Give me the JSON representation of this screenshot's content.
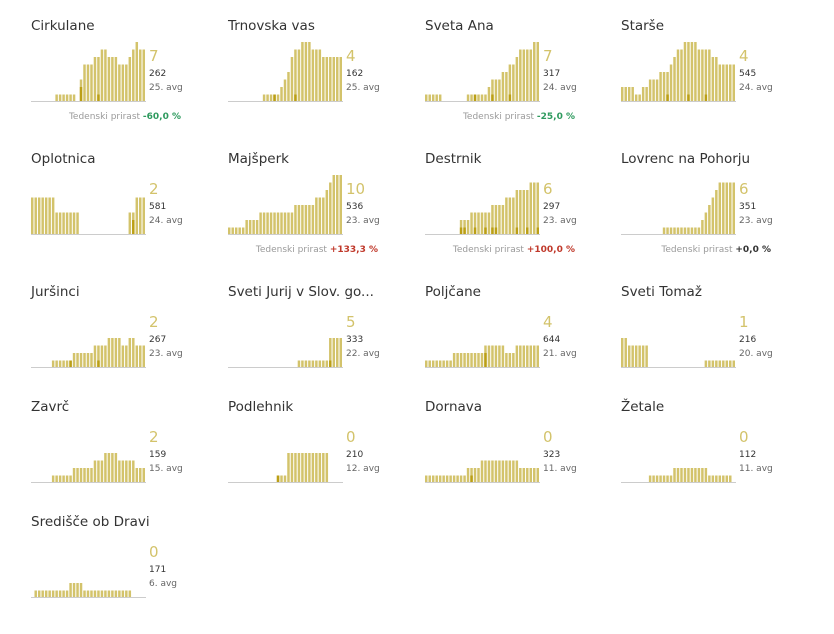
{
  "colors": {
    "bar_light": "#d3c36b",
    "bar_dark": "#bb9f16",
    "axis": "#cccccc"
  },
  "trend_label": "Tedenski prirast",
  "chart_data": [
    {
      "type": "bar",
      "title": "Cirkulane",
      "latest": "7",
      "total": "262",
      "avg": "25. avg",
      "trend": "-60,0 %",
      "trend_kind": "neg",
      "series": [
        {
          "name": "",
          "values": [
            0,
            0,
            0,
            0,
            0,
            0,
            0,
            1,
            1,
            1,
            1,
            1,
            1,
            0,
            3,
            5,
            5,
            5,
            6,
            6,
            7,
            7,
            6,
            6,
            6,
            5,
            5,
            5,
            6,
            7,
            8,
            7,
            7
          ]
        }
      ],
      "highlight": [
        0,
        0,
        0,
        0,
        0,
        0,
        0,
        0,
        0,
        0,
        0,
        0,
        0,
        0,
        2,
        0,
        0,
        0,
        0,
        1,
        0,
        0,
        0,
        0,
        0,
        0,
        0,
        0,
        0,
        0,
        0,
        0,
        0
      ]
    },
    {
      "type": "bar",
      "title": "Trnovska vas",
      "latest": "4",
      "total": "162",
      "avg": "25. avg",
      "trend": "",
      "trend_kind": "",
      "series": [
        {
          "name": "",
          "values": [
            0,
            0,
            0,
            0,
            0,
            0,
            0,
            0,
            0,
            0,
            1,
            1,
            1,
            1,
            1,
            2,
            3,
            4,
            6,
            7,
            7,
            8,
            8,
            8,
            7,
            7,
            7,
            6,
            6,
            6,
            6,
            6,
            6
          ]
        }
      ],
      "highlight": [
        0,
        0,
        0,
        0,
        0,
        0,
        0,
        0,
        0,
        0,
        0,
        0,
        0,
        1,
        0,
        0,
        0,
        0,
        0,
        1,
        0,
        0,
        0,
        0,
        0,
        0,
        0,
        0,
        0,
        0,
        0,
        0,
        0
      ]
    },
    {
      "type": "bar",
      "title": "Sveta Ana",
      "latest": "7",
      "total": "317",
      "avg": "24. avg",
      "trend": "-25,0 %",
      "trend_kind": "neg",
      "series": [
        {
          "name": "",
          "values": [
            1,
            1,
            1,
            1,
            1,
            0,
            0,
            0,
            0,
            0,
            0,
            0,
            1,
            1,
            1,
            1,
            1,
            1,
            2,
            3,
            3,
            3,
            4,
            4,
            5,
            5,
            6,
            7,
            7,
            7,
            7,
            8,
            8
          ]
        }
      ],
      "highlight": [
        0,
        0,
        0,
        0,
        0,
        0,
        0,
        0,
        0,
        0,
        0,
        0,
        0,
        0,
        1,
        0,
        0,
        0,
        0,
        1,
        0,
        0,
        0,
        0,
        1,
        0,
        0,
        0,
        0,
        0,
        0,
        0,
        0
      ]
    },
    {
      "type": "bar",
      "title": "Starše",
      "latest": "4",
      "total": "545",
      "avg": "24. avg",
      "trend": "",
      "trend_kind": "",
      "series": [
        {
          "name": "",
          "values": [
            2,
            2,
            2,
            2,
            1,
            1,
            2,
            2,
            3,
            3,
            3,
            4,
            4,
            4,
            5,
            6,
            7,
            7,
            8,
            8,
            8,
            8,
            7,
            7,
            7,
            7,
            6,
            6,
            5,
            5,
            5,
            5,
            5
          ]
        }
      ],
      "highlight": [
        0,
        0,
        0,
        0,
        0,
        0,
        0,
        0,
        0,
        0,
        0,
        0,
        0,
        1,
        0,
        0,
        0,
        0,
        0,
        1,
        0,
        0,
        0,
        0,
        1,
        0,
        0,
        0,
        0,
        0,
        0,
        0,
        0
      ]
    },
    {
      "type": "bar",
      "title": "Oplotnica",
      "latest": "2",
      "total": "581",
      "avg": "24. avg",
      "trend": "",
      "trend_kind": "",
      "series": [
        {
          "name": "",
          "values": [
            5,
            5,
            5,
            5,
            5,
            5,
            5,
            3,
            3,
            3,
            3,
            3,
            3,
            3,
            0,
            0,
            0,
            0,
            0,
            0,
            0,
            0,
            0,
            0,
            0,
            0,
            0,
            0,
            3,
            3,
            5,
            5,
            5
          ]
        }
      ],
      "highlight": [
        0,
        0,
        0,
        0,
        0,
        0,
        0,
        0,
        0,
        0,
        0,
        0,
        0,
        0,
        0,
        0,
        0,
        0,
        0,
        0,
        0,
        0,
        0,
        0,
        0,
        0,
        0,
        0,
        0,
        2,
        0,
        0,
        0
      ]
    },
    {
      "type": "bar",
      "title": "Majšperk",
      "latest": "10",
      "total": "536",
      "avg": "23. avg",
      "trend": "+133,3 %",
      "trend_kind": "pos",
      "series": [
        {
          "name": "",
          "values": [
            1,
            1,
            1,
            1,
            1,
            2,
            2,
            2,
            2,
            3,
            3,
            3,
            3,
            3,
            3,
            3,
            3,
            3,
            3,
            4,
            4,
            4,
            4,
            4,
            4,
            5,
            5,
            5,
            6,
            7,
            8,
            8,
            8
          ]
        }
      ],
      "highlight": [
        0,
        0,
        0,
        0,
        0,
        0,
        0,
        0,
        0,
        0,
        0,
        0,
        0,
        0,
        0,
        0,
        0,
        0,
        0,
        0,
        0,
        0,
        0,
        0,
        0,
        0,
        0,
        0,
        0,
        0,
        0,
        0,
        0
      ]
    },
    {
      "type": "bar",
      "title": "Destrnik",
      "latest": "6",
      "total": "297",
      "avg": "23. avg",
      "trend": "+100,0 %",
      "trend_kind": "pos",
      "series": [
        {
          "name": "",
          "values": [
            0,
            0,
            0,
            0,
            0,
            0,
            0,
            0,
            0,
            0,
            2,
            2,
            2,
            3,
            3,
            3,
            3,
            3,
            3,
            4,
            4,
            4,
            4,
            5,
            5,
            5,
            6,
            6,
            6,
            6,
            7,
            7,
            7
          ]
        }
      ],
      "highlight": [
        0,
        0,
        0,
        0,
        0,
        0,
        0,
        0,
        0,
        0,
        1,
        1,
        0,
        0,
        1,
        0,
        0,
        1,
        0,
        1,
        1,
        0,
        0,
        0,
        0,
        0,
        1,
        0,
        0,
        1,
        0,
        0,
        1
      ]
    },
    {
      "type": "bar",
      "title": "Lovrenc na Pohorju",
      "latest": "6",
      "total": "351",
      "avg": "23. avg",
      "trend": "+0,0 %",
      "trend_kind": "zero",
      "series": [
        {
          "name": "",
          "values": [
            0,
            0,
            0,
            0,
            0,
            0,
            0,
            0,
            0,
            0,
            0,
            0,
            1,
            1,
            1,
            1,
            1,
            1,
            1,
            1,
            1,
            1,
            1,
            2,
            3,
            4,
            5,
            6,
            7,
            7,
            7,
            7,
            7
          ]
        }
      ],
      "highlight": [
        0,
        0,
        0,
        0,
        0,
        0,
        0,
        0,
        0,
        0,
        0,
        0,
        0,
        0,
        0,
        0,
        0,
        0,
        0,
        0,
        0,
        0,
        0,
        0,
        0,
        0,
        0,
        0,
        0,
        0,
        0,
        0,
        0
      ]
    },
    {
      "type": "bar",
      "title": "Juršinci",
      "latest": "2",
      "total": "267",
      "avg": "23. avg",
      "trend": "",
      "trend_kind": "",
      "series": [
        {
          "name": "",
          "values": [
            0,
            0,
            0,
            0,
            0,
            0,
            1,
            1,
            1,
            1,
            1,
            1,
            2,
            2,
            2,
            2,
            2,
            2,
            3,
            3,
            3,
            3,
            4,
            4,
            4,
            4,
            3,
            3,
            4,
            4,
            3,
            3,
            3
          ]
        }
      ],
      "highlight": [
        0,
        0,
        0,
        0,
        0,
        0,
        0,
        0,
        0,
        0,
        0,
        1,
        0,
        0,
        0,
        0,
        0,
        0,
        0,
        1,
        0,
        0,
        0,
        0,
        0,
        0,
        0,
        0,
        0,
        0,
        0,
        0,
        0
      ]
    },
    {
      "type": "bar",
      "title": "Sveti Jurij v Slov. go...",
      "latest": "5",
      "total": "333",
      "avg": "22. avg",
      "trend": "",
      "trend_kind": "",
      "series": [
        {
          "name": "",
          "values": [
            0,
            0,
            0,
            0,
            0,
            0,
            0,
            0,
            0,
            0,
            0,
            0,
            0,
            0,
            0,
            0,
            0,
            0,
            0,
            0,
            1,
            1,
            1,
            1,
            1,
            1,
            1,
            1,
            1,
            4,
            4,
            4,
            4
          ]
        }
      ],
      "highlight": [
        0,
        0,
        0,
        0,
        0,
        0,
        0,
        0,
        0,
        0,
        0,
        0,
        0,
        0,
        0,
        0,
        0,
        0,
        0,
        0,
        0,
        0,
        0,
        0,
        0,
        0,
        0,
        0,
        0,
        1,
        0,
        0,
        0
      ]
    },
    {
      "type": "bar",
      "title": "Poljčane",
      "latest": "4",
      "total": "644",
      "avg": "21. avg",
      "trend": "",
      "trend_kind": "",
      "series": [
        {
          "name": "",
          "values": [
            1,
            1,
            1,
            1,
            1,
            1,
            1,
            1,
            2,
            2,
            2,
            2,
            2,
            2,
            2,
            2,
            2,
            3,
            3,
            3,
            3,
            3,
            3,
            2,
            2,
            2,
            3,
            3,
            3,
            3,
            3,
            3,
            3
          ]
        }
      ],
      "highlight": [
        0,
        0,
        0,
        0,
        0,
        0,
        0,
        0,
        0,
        0,
        0,
        0,
        0,
        0,
        0,
        0,
        0,
        2,
        0,
        0,
        0,
        0,
        0,
        0,
        0,
        0,
        0,
        0,
        0,
        0,
        0,
        0,
        0
      ]
    },
    {
      "type": "bar",
      "title": "Sveti Tomaž",
      "latest": "1",
      "total": "216",
      "avg": "20. avg",
      "trend": "",
      "trend_kind": "",
      "series": [
        {
          "name": "",
          "values": [
            4,
            4,
            3,
            3,
            3,
            3,
            3,
            3,
            0,
            0,
            0,
            0,
            0,
            0,
            0,
            0,
            0,
            0,
            0,
            0,
            0,
            0,
            0,
            0,
            1,
            1,
            1,
            1,
            1,
            1,
            1,
            1,
            1
          ]
        }
      ],
      "highlight": [
        0,
        0,
        0,
        0,
        0,
        0,
        0,
        0,
        0,
        0,
        0,
        0,
        0,
        0,
        0,
        0,
        0,
        0,
        0,
        0,
        0,
        0,
        0,
        0,
        0,
        0,
        0,
        0,
        0,
        0,
        0,
        0,
        0
      ]
    },
    {
      "type": "bar",
      "title": "Zavrč",
      "latest": "2",
      "total": "159",
      "avg": "15. avg",
      "trend": "",
      "trend_kind": "",
      "series": [
        {
          "name": "",
          "values": [
            0,
            0,
            0,
            0,
            0,
            0,
            1,
            1,
            1,
            1,
            1,
            1,
            2,
            2,
            2,
            2,
            2,
            2,
            3,
            3,
            3,
            4,
            4,
            4,
            4,
            3,
            3,
            3,
            3,
            3,
            2,
            2,
            2
          ]
        }
      ],
      "highlight": [
        0,
        0,
        0,
        0,
        0,
        0,
        0,
        0,
        0,
        0,
        0,
        0,
        0,
        0,
        0,
        0,
        0,
        0,
        0,
        0,
        0,
        0,
        0,
        0,
        0,
        0,
        0,
        0,
        0,
        0,
        0,
        0,
        0
      ]
    },
    {
      "type": "bar",
      "title": "Podlehnik",
      "latest": "0",
      "total": "210",
      "avg": "12. avg",
      "trend": "",
      "trend_kind": "",
      "series": [
        {
          "name": "",
          "values": [
            0,
            0,
            0,
            0,
            0,
            0,
            0,
            0,
            0,
            0,
            0,
            0,
            0,
            0,
            1,
            1,
            1,
            4,
            4,
            4,
            4,
            4,
            4,
            4,
            4,
            4,
            4,
            4,
            4,
            0,
            0,
            0,
            0
          ]
        }
      ],
      "highlight": [
        0,
        0,
        0,
        0,
        0,
        0,
        0,
        0,
        0,
        0,
        0,
        0,
        0,
        0,
        1,
        0,
        0,
        0,
        0,
        0,
        0,
        0,
        0,
        0,
        0,
        0,
        0,
        0,
        0,
        0,
        0,
        0,
        0
      ]
    },
    {
      "type": "bar",
      "title": "Dornava",
      "latest": "0",
      "total": "323",
      "avg": "11. avg",
      "trend": "",
      "trend_kind": "",
      "series": [
        {
          "name": "",
          "values": [
            1,
            1,
            1,
            1,
            1,
            1,
            1,
            1,
            1,
            1,
            1,
            1,
            2,
            2,
            2,
            2,
            3,
            3,
            3,
            3,
            3,
            3,
            3,
            3,
            3,
            3,
            3,
            2,
            2,
            2,
            2,
            2,
            2
          ]
        }
      ],
      "highlight": [
        0,
        0,
        0,
        0,
        0,
        0,
        0,
        0,
        0,
        0,
        0,
        0,
        0,
        1,
        0,
        0,
        0,
        0,
        0,
        0,
        0,
        0,
        0,
        0,
        0,
        0,
        0,
        0,
        0,
        0,
        0,
        0,
        0
      ]
    },
    {
      "type": "bar",
      "title": "Žetale",
      "latest": "0",
      "total": "112",
      "avg": "11. avg",
      "trend": "",
      "trend_kind": "",
      "series": [
        {
          "name": "",
          "values": [
            0,
            0,
            0,
            0,
            0,
            0,
            0,
            0,
            1,
            1,
            1,
            1,
            1,
            1,
            1,
            2,
            2,
            2,
            2,
            2,
            2,
            2,
            2,
            2,
            2,
            1,
            1,
            1,
            1,
            1,
            1,
            1,
            0
          ]
        }
      ],
      "highlight": [
        0,
        0,
        0,
        0,
        0,
        0,
        0,
        0,
        0,
        0,
        0,
        0,
        0,
        0,
        0,
        0,
        0,
        0,
        0,
        0,
        0,
        0,
        0,
        0,
        0,
        0,
        0,
        0,
        0,
        0,
        0,
        0,
        0
      ]
    },
    {
      "type": "bar",
      "title": "Središče ob Dravi",
      "latest": "0",
      "total": "171",
      "avg": "6. avg",
      "trend": "",
      "trend_kind": "",
      "series": [
        {
          "name": "",
          "values": [
            0,
            1,
            1,
            1,
            1,
            1,
            1,
            1,
            1,
            1,
            1,
            2,
            2,
            2,
            2,
            1,
            1,
            1,
            1,
            1,
            1,
            1,
            1,
            1,
            1,
            1,
            1,
            1,
            1,
            0,
            0,
            0,
            0
          ]
        }
      ],
      "highlight": [
        0,
        0,
        0,
        0,
        0,
        0,
        0,
        0,
        0,
        0,
        0,
        0,
        0,
        0,
        0,
        0,
        0,
        0,
        0,
        0,
        0,
        0,
        0,
        0,
        0,
        0,
        0,
        0,
        0,
        0,
        0,
        0,
        0
      ]
    }
  ]
}
